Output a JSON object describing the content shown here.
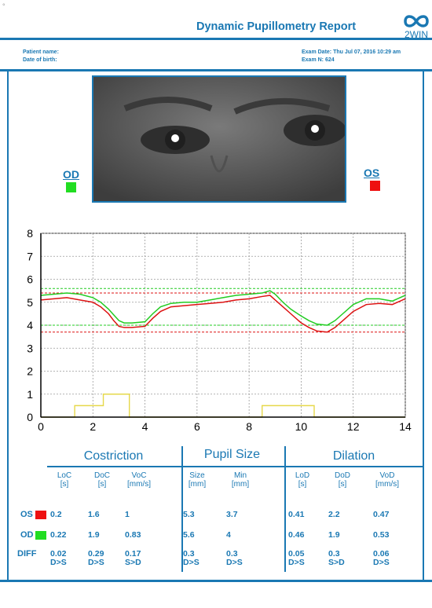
{
  "report": {
    "title": "Dynamic Pupillometry Report",
    "logo_text": "2WIN",
    "mark": "°"
  },
  "patient": {
    "name_label": "Patient name:",
    "dob_label": "Date of birth:"
  },
  "exam": {
    "date_label": "Exam Date: Thu Jul 07, 2016  10:29 am",
    "number_label": "Exam N: 624"
  },
  "eyes": {
    "od_label": "OD",
    "os_label": "OS",
    "od_color": "#22dd22",
    "os_color": "#ee1111"
  },
  "chart_data": {
    "type": "line",
    "xlim": [
      0,
      14
    ],
    "ylim": [
      0,
      8
    ],
    "x_ticks": [
      "0",
      "2",
      "4",
      "6",
      "8",
      "10",
      "12",
      "14"
    ],
    "y_ticks": [
      "0",
      "1",
      "2",
      "3",
      "4",
      "5",
      "6",
      "7",
      "8"
    ],
    "grid": true,
    "series": [
      {
        "color": "#22cc22",
        "x": [
          0,
          0.5,
          1,
          1.5,
          2,
          2.3,
          2.6,
          2.8,
          3,
          3.2,
          3.5,
          4,
          4.3,
          4.6,
          5,
          5.5,
          6,
          6.5,
          7,
          7.5,
          8,
          8.5,
          8.8,
          9,
          9.3,
          9.6,
          10,
          10.3,
          10.6,
          11,
          11.3,
          11.6,
          12,
          12.5,
          13,
          13.5,
          14
        ],
        "y": [
          5.3,
          5.35,
          5.4,
          5.35,
          5.2,
          5.0,
          4.7,
          4.45,
          4.2,
          4.1,
          4.1,
          4.15,
          4.5,
          4.8,
          4.95,
          5.0,
          5.0,
          5.1,
          5.2,
          5.3,
          5.35,
          5.4,
          5.5,
          5.35,
          5.0,
          4.7,
          4.4,
          4.2,
          4.05,
          4.0,
          4.2,
          4.5,
          4.9,
          5.15,
          5.15,
          5.05,
          5.3
        ]
      },
      {
        "color": "#dd1111",
        "x": [
          0,
          0.5,
          1,
          1.5,
          2,
          2.3,
          2.6,
          2.8,
          3,
          3.2,
          3.5,
          4,
          4.3,
          4.6,
          5,
          5.5,
          6,
          6.5,
          7,
          7.5,
          8,
          8.5,
          8.8,
          9,
          9.3,
          9.6,
          10,
          10.3,
          10.6,
          11,
          11.3,
          11.6,
          12,
          12.5,
          13,
          13.5,
          14
        ],
        "y": [
          5.1,
          5.15,
          5.2,
          5.1,
          5.0,
          4.8,
          4.5,
          4.2,
          3.95,
          3.9,
          3.9,
          3.95,
          4.3,
          4.6,
          4.8,
          4.85,
          4.9,
          4.95,
          5.0,
          5.1,
          5.15,
          5.25,
          5.3,
          5.1,
          4.8,
          4.5,
          4.1,
          3.9,
          3.75,
          3.7,
          3.9,
          4.2,
          4.6,
          4.9,
          4.95,
          4.9,
          5.15
        ]
      }
    ],
    "reference_lines": [
      {
        "y": 5.6,
        "color": "#22cc22"
      },
      {
        "y": 5.4,
        "color": "#dd1111"
      },
      {
        "y": 4.0,
        "color": "#22cc22"
      },
      {
        "y": 3.7,
        "color": "#dd1111"
      }
    ],
    "stimulus": {
      "color": "#e6d84a",
      "x": [
        0,
        1.3,
        1.3,
        2.4,
        2.4,
        3.4,
        3.4,
        8.5,
        8.5,
        10.5,
        10.5,
        14
      ],
      "y": [
        0,
        0,
        0.5,
        0.5,
        1.0,
        1.0,
        0,
        0,
        0.5,
        0.5,
        0,
        0
      ]
    }
  },
  "table": {
    "groups": [
      "Costriction",
      "Pupil Size",
      "Dilation"
    ],
    "columns": [
      {
        "name": "LoC",
        "unit": "[s]"
      },
      {
        "name": "DoC",
        "unit": "[s]"
      },
      {
        "name": "VoC",
        "unit": "[mm/s]"
      },
      {
        "name": "Size",
        "unit": "[mm]"
      },
      {
        "name": "Min",
        "unit": "[mm]"
      },
      {
        "name": "LoD",
        "unit": "[s]"
      },
      {
        "name": "DoD",
        "unit": "[s]"
      },
      {
        "name": "VoD",
        "unit": "[mm/s]"
      }
    ],
    "rows": [
      {
        "label": "OS",
        "values": [
          "0.2",
          "1.6",
          "1",
          "5.3",
          "3.7",
          "0.41",
          "2.2",
          "0.47"
        ]
      },
      {
        "label": "OD",
        "values": [
          "0.22",
          "1.9",
          "0.83",
          "5.6",
          "4",
          "0.46",
          "1.9",
          "0.53"
        ]
      },
      {
        "label": "DIFF",
        "values": [
          "0.02",
          "0.29",
          "0.17",
          "0.3",
          "0.3",
          "0.05",
          "0.3",
          "0.06"
        ],
        "notes": [
          "D>S",
          "D>S",
          "S>D",
          "D>S",
          "D>S",
          "D>S",
          "S>D",
          "D>S"
        ]
      }
    ]
  }
}
